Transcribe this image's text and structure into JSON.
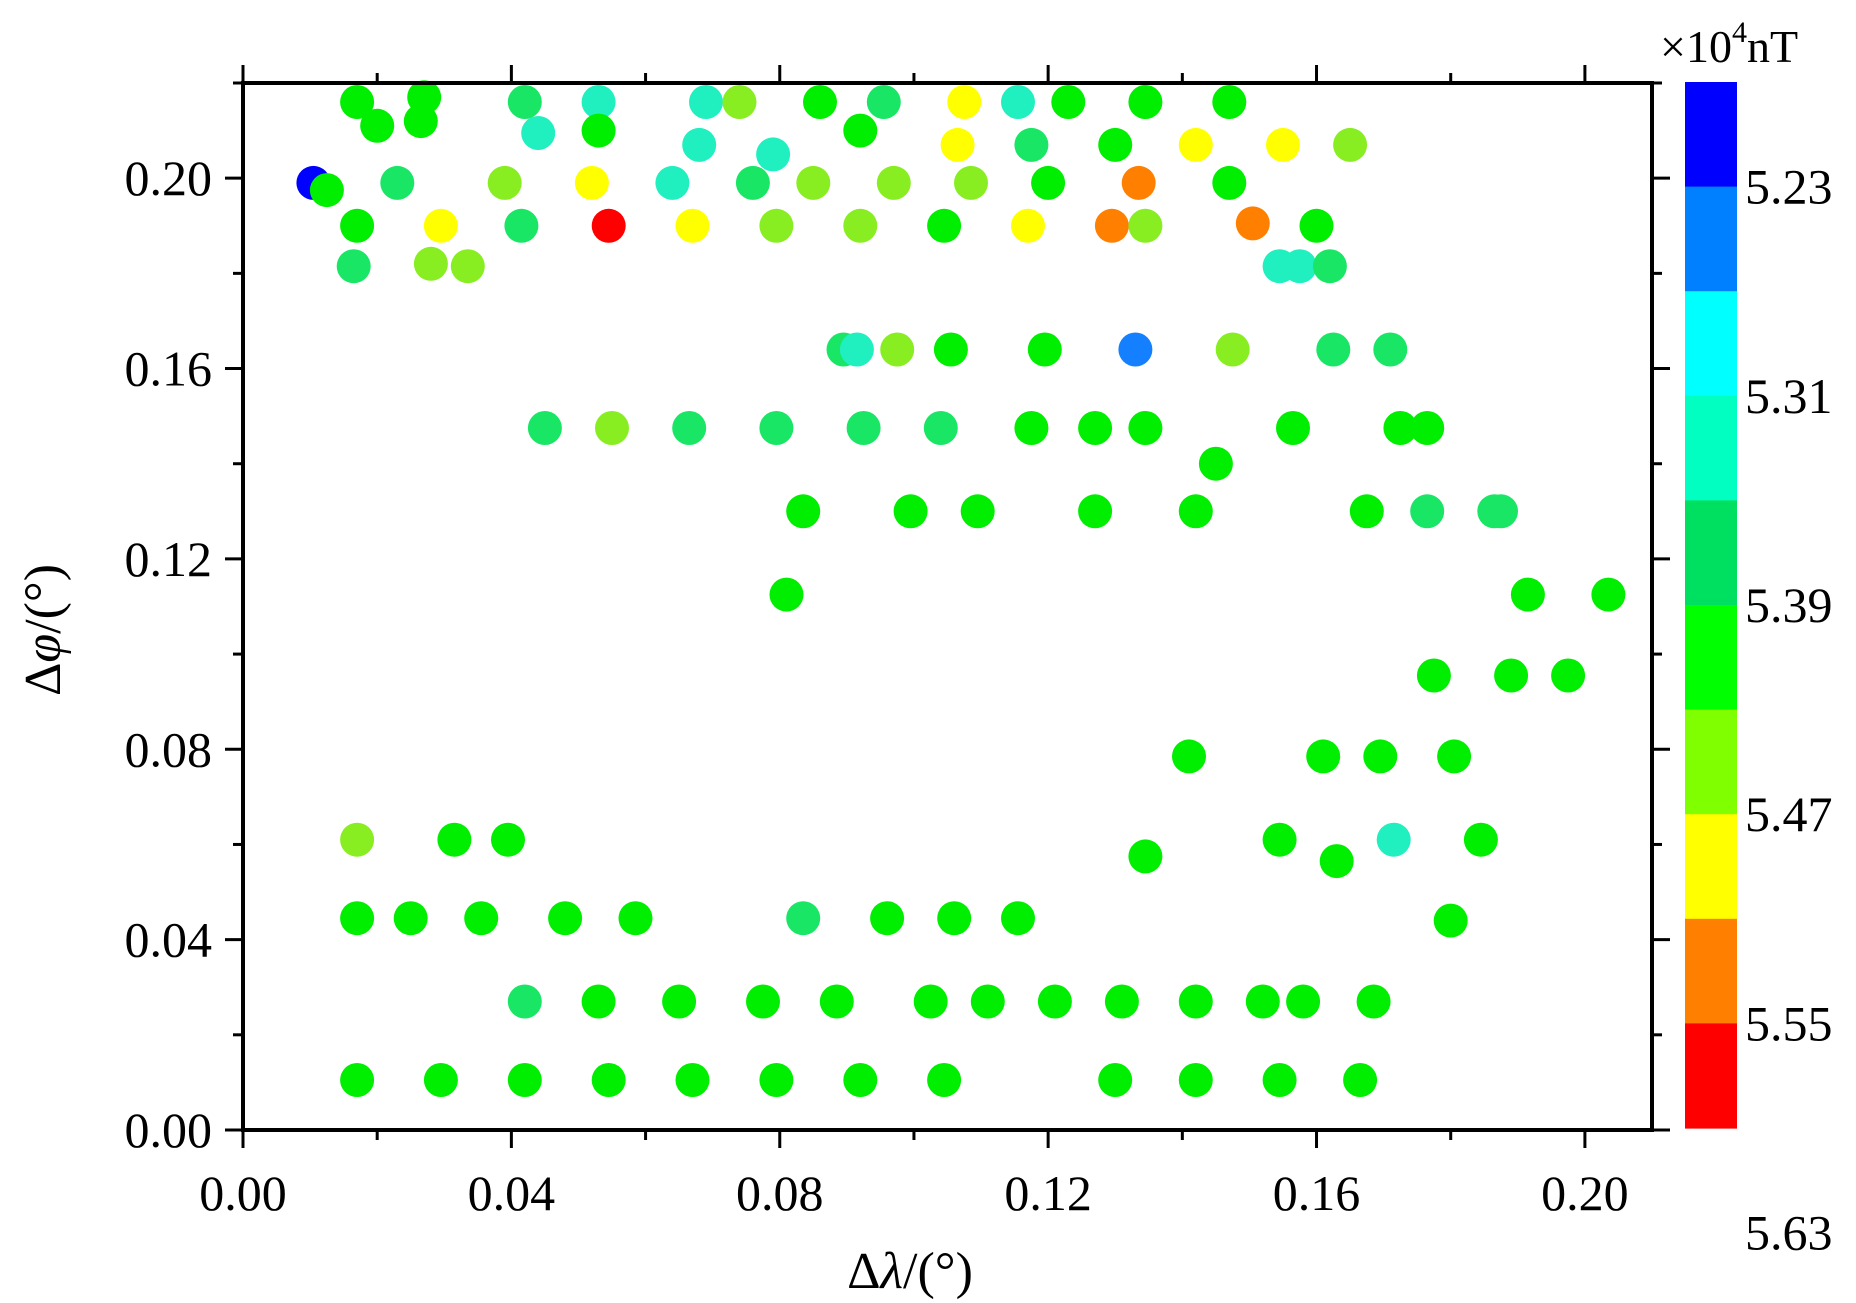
{
  "chart_data": {
    "type": "scatter",
    "xlabel_parts": {
      "delta": "Δ",
      "sym": "λ",
      "unit": "/(°)"
    },
    "ylabel_parts": {
      "delta": "Δ",
      "sym": "φ",
      "unit": "/(°)"
    },
    "xlim": [
      0.0,
      0.21
    ],
    "ylim": [
      0.0,
      0.22
    ],
    "xticks": [
      "0.00",
      "0.04",
      "0.08",
      "0.12",
      "0.16",
      "0.20"
    ],
    "yticks": [
      "0.00",
      "0.04",
      "0.08",
      "0.12",
      "0.16",
      "0.20"
    ],
    "colorbar": {
      "unit_parts": {
        "prefix": "×10",
        "exp": "4",
        "suffix": "nT"
      },
      "labels": [
        "5.23",
        "5.31",
        "5.39",
        "5.47",
        "5.55",
        "5.63"
      ],
      "bands_top_to_bottom": [
        "#0000ff",
        "#0080ff",
        "#00ffff",
        "#00ffc0",
        "#00e060",
        "#00ff00",
        "#80ff00",
        "#ffff00",
        "#ff8000",
        "#ff0000"
      ]
    },
    "level_colors": {
      "1": "#0000ff",
      "2": "#1480ff",
      "4": "#20efc0",
      "5": "#19e665",
      "6": "#00ee00",
      "7": "#88ee22",
      "8": "#ffff00",
      "9": "#ff8000",
      "10": "#ff0000"
    },
    "points": [
      [
        0.0105,
        0.199,
        1
      ],
      [
        0.0125,
        0.1975,
        6
      ],
      [
        0.017,
        0.216,
        6
      ],
      [
        0.02,
        0.211,
        6
      ],
      [
        0.027,
        0.217,
        6
      ],
      [
        0.0265,
        0.212,
        6
      ],
      [
        0.042,
        0.216,
        5
      ],
      [
        0.044,
        0.2095,
        4
      ],
      [
        0.053,
        0.216,
        4
      ],
      [
        0.053,
        0.21,
        6
      ],
      [
        0.069,
        0.216,
        4
      ],
      [
        0.074,
        0.216,
        7
      ],
      [
        0.086,
        0.216,
        6
      ],
      [
        0.0955,
        0.216,
        5
      ],
      [
        0.1075,
        0.216,
        8
      ],
      [
        0.1155,
        0.216,
        4
      ],
      [
        0.123,
        0.216,
        6
      ],
      [
        0.1345,
        0.216,
        6
      ],
      [
        0.147,
        0.216,
        6
      ],
      [
        0.068,
        0.207,
        4
      ],
      [
        0.079,
        0.205,
        4
      ],
      [
        0.092,
        0.21,
        6
      ],
      [
        0.1065,
        0.207,
        8
      ],
      [
        0.1175,
        0.207,
        5
      ],
      [
        0.13,
        0.207,
        6
      ],
      [
        0.142,
        0.207,
        8
      ],
      [
        0.155,
        0.207,
        8
      ],
      [
        0.165,
        0.207,
        7
      ],
      [
        0.023,
        0.199,
        5
      ],
      [
        0.039,
        0.199,
        7
      ],
      [
        0.052,
        0.199,
        8
      ],
      [
        0.064,
        0.199,
        4
      ],
      [
        0.076,
        0.199,
        5
      ],
      [
        0.085,
        0.199,
        7
      ],
      [
        0.097,
        0.199,
        7
      ],
      [
        0.1085,
        0.199,
        7
      ],
      [
        0.12,
        0.199,
        6
      ],
      [
        0.1335,
        0.199,
        9
      ],
      [
        0.147,
        0.199,
        6
      ],
      [
        0.017,
        0.19,
        6
      ],
      [
        0.0295,
        0.19,
        8
      ],
      [
        0.0415,
        0.19,
        5
      ],
      [
        0.0545,
        0.19,
        10
      ],
      [
        0.067,
        0.19,
        8
      ],
      [
        0.0795,
        0.19,
        7
      ],
      [
        0.092,
        0.19,
        7
      ],
      [
        0.1045,
        0.19,
        6
      ],
      [
        0.117,
        0.19,
        8
      ],
      [
        0.1295,
        0.19,
        9
      ],
      [
        0.1345,
        0.19,
        7
      ],
      [
        0.1505,
        0.1905,
        9
      ],
      [
        0.16,
        0.19,
        6
      ],
      [
        0.0165,
        0.1815,
        5
      ],
      [
        0.028,
        0.182,
        7
      ],
      [
        0.0335,
        0.1815,
        7
      ],
      [
        0.1545,
        0.1815,
        4
      ],
      [
        0.1575,
        0.1815,
        4
      ],
      [
        0.162,
        0.1815,
        5
      ],
      [
        0.0895,
        0.164,
        5
      ],
      [
        0.0915,
        0.164,
        4
      ],
      [
        0.0975,
        0.164,
        7
      ],
      [
        0.1055,
        0.164,
        6
      ],
      [
        0.1195,
        0.164,
        6
      ],
      [
        0.133,
        0.164,
        2
      ],
      [
        0.1475,
        0.164,
        7
      ],
      [
        0.1625,
        0.164,
        5
      ],
      [
        0.171,
        0.164,
        5
      ],
      [
        0.045,
        0.1475,
        5
      ],
      [
        0.055,
        0.1475,
        7
      ],
      [
        0.0665,
        0.1475,
        5
      ],
      [
        0.0795,
        0.1475,
        5
      ],
      [
        0.0925,
        0.1475,
        5
      ],
      [
        0.104,
        0.1475,
        5
      ],
      [
        0.1175,
        0.1475,
        6
      ],
      [
        0.127,
        0.1475,
        6
      ],
      [
        0.1345,
        0.1475,
        6
      ],
      [
        0.1565,
        0.1475,
        6
      ],
      [
        0.1725,
        0.1475,
        6
      ],
      [
        0.1765,
        0.1475,
        6
      ],
      [
        0.145,
        0.14,
        6
      ],
      [
        0.0835,
        0.13,
        6
      ],
      [
        0.0995,
        0.13,
        6
      ],
      [
        0.1095,
        0.13,
        6
      ],
      [
        0.127,
        0.13,
        6
      ],
      [
        0.142,
        0.13,
        6
      ],
      [
        0.1675,
        0.13,
        6
      ],
      [
        0.1765,
        0.13,
        5
      ],
      [
        0.1865,
        0.13,
        5
      ],
      [
        0.1875,
        0.13,
        5
      ],
      [
        0.081,
        0.1125,
        6
      ],
      [
        0.1915,
        0.1125,
        6
      ],
      [
        0.2035,
        0.1125,
        6
      ],
      [
        0.1775,
        0.0955,
        6
      ],
      [
        0.189,
        0.0955,
        6
      ],
      [
        0.1975,
        0.0955,
        6
      ],
      [
        0.141,
        0.0785,
        6
      ],
      [
        0.161,
        0.0785,
        6
      ],
      [
        0.1695,
        0.0785,
        6
      ],
      [
        0.1805,
        0.0785,
        6
      ],
      [
        0.017,
        0.061,
        7
      ],
      [
        0.0315,
        0.061,
        6
      ],
      [
        0.0395,
        0.061,
        6
      ],
      [
        0.1345,
        0.0575,
        6
      ],
      [
        0.1545,
        0.061,
        6
      ],
      [
        0.163,
        0.0565,
        6
      ],
      [
        0.1715,
        0.061,
        4
      ],
      [
        0.1845,
        0.061,
        6
      ],
      [
        0.017,
        0.0445,
        6
      ],
      [
        0.025,
        0.0445,
        6
      ],
      [
        0.0355,
        0.0445,
        6
      ],
      [
        0.048,
        0.0445,
        6
      ],
      [
        0.0585,
        0.0445,
        6
      ],
      [
        0.0835,
        0.0445,
        5
      ],
      [
        0.096,
        0.0445,
        6
      ],
      [
        0.106,
        0.0445,
        6
      ],
      [
        0.1155,
        0.0445,
        6
      ],
      [
        0.18,
        0.044,
        6
      ],
      [
        0.042,
        0.027,
        5
      ],
      [
        0.053,
        0.027,
        6
      ],
      [
        0.065,
        0.027,
        6
      ],
      [
        0.0775,
        0.027,
        6
      ],
      [
        0.0885,
        0.027,
        6
      ],
      [
        0.1025,
        0.027,
        6
      ],
      [
        0.111,
        0.027,
        6
      ],
      [
        0.121,
        0.027,
        6
      ],
      [
        0.131,
        0.027,
        6
      ],
      [
        0.142,
        0.027,
        6
      ],
      [
        0.152,
        0.027,
        6
      ],
      [
        0.158,
        0.027,
        6
      ],
      [
        0.1685,
        0.027,
        6
      ],
      [
        0.017,
        0.0105,
        6
      ],
      [
        0.0295,
        0.0105,
        6
      ],
      [
        0.042,
        0.0105,
        6
      ],
      [
        0.0545,
        0.0105,
        6
      ],
      [
        0.067,
        0.0105,
        6
      ],
      [
        0.0795,
        0.0105,
        6
      ],
      [
        0.092,
        0.0105,
        6
      ],
      [
        0.1045,
        0.0105,
        6
      ],
      [
        0.13,
        0.0105,
        6
      ],
      [
        0.142,
        0.0105,
        6
      ],
      [
        0.1545,
        0.0105,
        6
      ],
      [
        0.1665,
        0.0105,
        6
      ]
    ]
  }
}
